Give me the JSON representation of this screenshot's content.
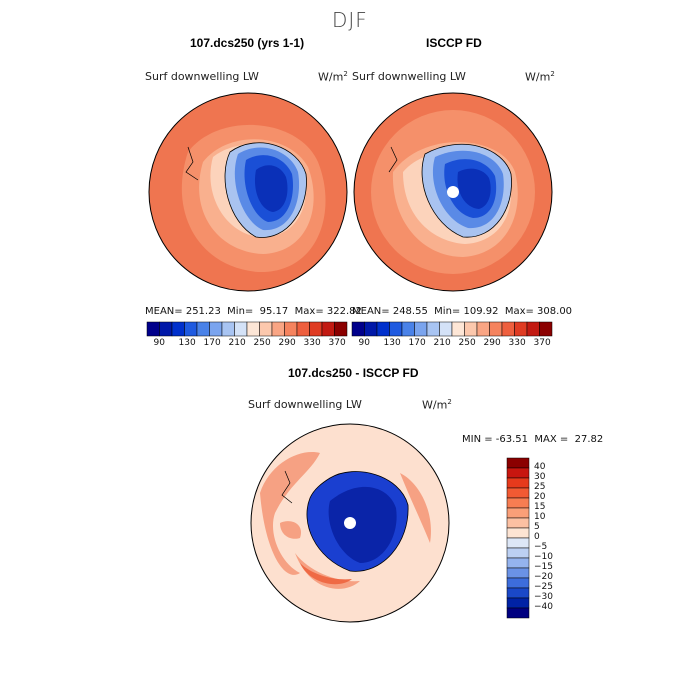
{
  "figure": {
    "title": "DJF"
  },
  "panel_left": {
    "title": "107.dcs250 (yrs 1-1)",
    "variable": "Surf downwelling LW",
    "units_base": "W/m",
    "units_exp": "2",
    "stats": "MEAN= 251.23  Min=  95.17  Max= 322.82"
  },
  "panel_right": {
    "title": "ISCCP FD",
    "variable": "Surf downwelling LW",
    "units_base": "W/m",
    "units_exp": "2",
    "stats": "MEAN= 248.55  Min= 109.92  Max= 308.00"
  },
  "panel_diff": {
    "title": "107.dcs250 - ISCCP FD",
    "variable": "Surf downwelling LW",
    "units_base": "W/m",
    "units_exp": "2",
    "stats": "MIN = -63.51  MAX =  27.82"
  },
  "colorbar_abs": {
    "orientation": "horizontal",
    "tick_labels": [
      "90",
      "130",
      "170",
      "210",
      "250",
      "290",
      "330",
      "370"
    ],
    "colors": [
      "#00008b",
      "#0018a8",
      "#0030cc",
      "#1f5ae0",
      "#4a82e8",
      "#7aa4ee",
      "#a8c4f2",
      "#d4e2f7",
      "#fde6d6",
      "#fcc8ad",
      "#f9a584",
      "#f5835e",
      "#ee5f3e",
      "#df3b22",
      "#c21a12",
      "#8b0000"
    ]
  },
  "colorbar_diff": {
    "orientation": "vertical",
    "tick_labels": [
      "40",
      "30",
      "25",
      "20",
      "15",
      "10",
      "5",
      "0",
      "−5",
      "−10",
      "−15",
      "−20",
      "−25",
      "−30",
      "−40"
    ],
    "colors": [
      "#8b0000",
      "#c8160f",
      "#e63a1c",
      "#f25a33",
      "#f77d52",
      "#fa9f78",
      "#fcc0a2",
      "#fde4d3",
      "#dde7f7",
      "#bcd0f3",
      "#94b3ee",
      "#6a92e6",
      "#3d6ddc",
      "#1a48c8",
      "#0022a5",
      "#000080"
    ]
  },
  "map_colors": {
    "ocean_outer": "#ef7550",
    "ocean_mid": "#f5906a",
    "ocean_inner": "#f9b08e",
    "coast_ring": "#fcd3bb",
    "ice_edge": "#a9c3f0",
    "ice_mid": "#5a8ae6",
    "ice_core": "#1a4fd6",
    "ice_deep": "#0a30b8",
    "diff_bg": "#fde0cf",
    "diff_warm": "#f6a183",
    "diff_hot": "#ef6a45",
    "diff_cold": "#1a3fd0",
    "diff_cold_deep": "#0a24a8"
  }
}
